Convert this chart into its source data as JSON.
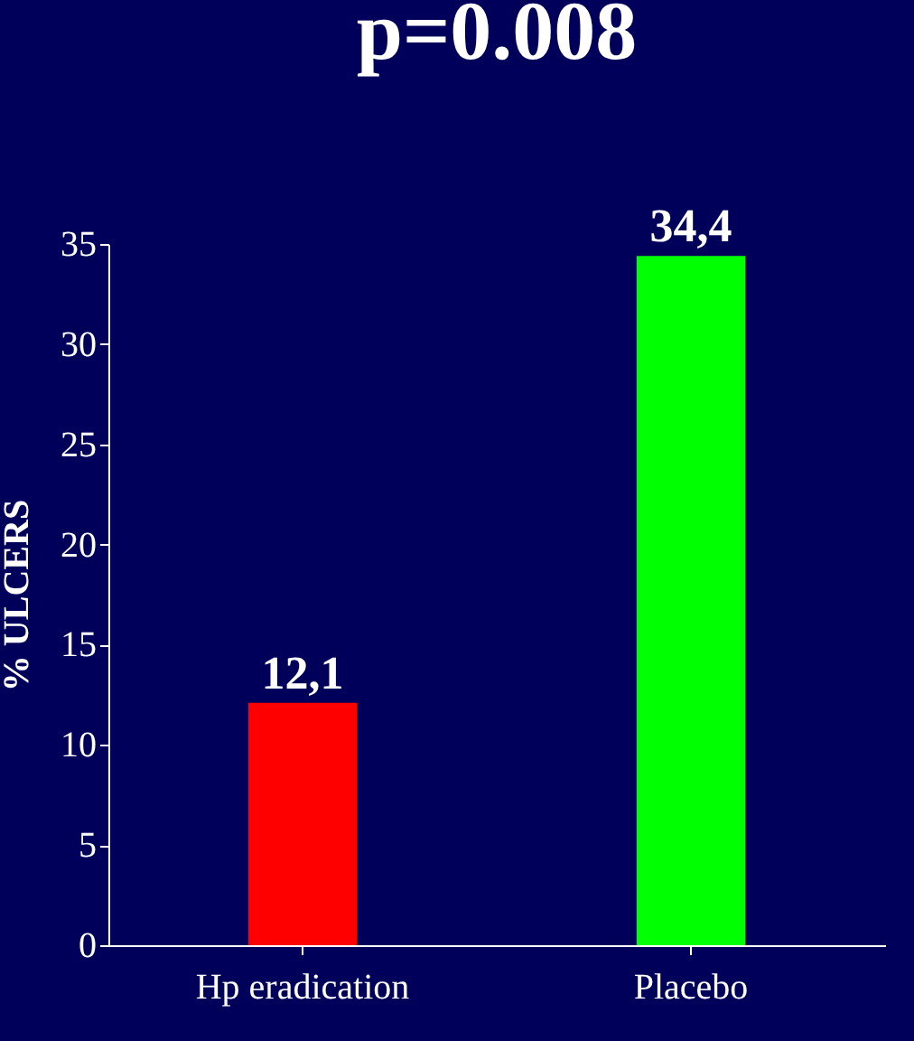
{
  "chart_data": {
    "type": "bar",
    "title": "p=0.008",
    "ylabel": "% ULCERS",
    "categories": [
      "Hp eradication",
      "Placebo"
    ],
    "values": [
      12.1,
      34.4
    ],
    "colors": [
      "#ff0000",
      "#00ff00"
    ],
    "value_labels": [
      "12,1",
      "34,4"
    ],
    "ylim": [
      0,
      35
    ],
    "yticks": [
      0,
      5,
      10,
      15,
      20,
      25,
      30,
      35
    ],
    "grid": false
  }
}
